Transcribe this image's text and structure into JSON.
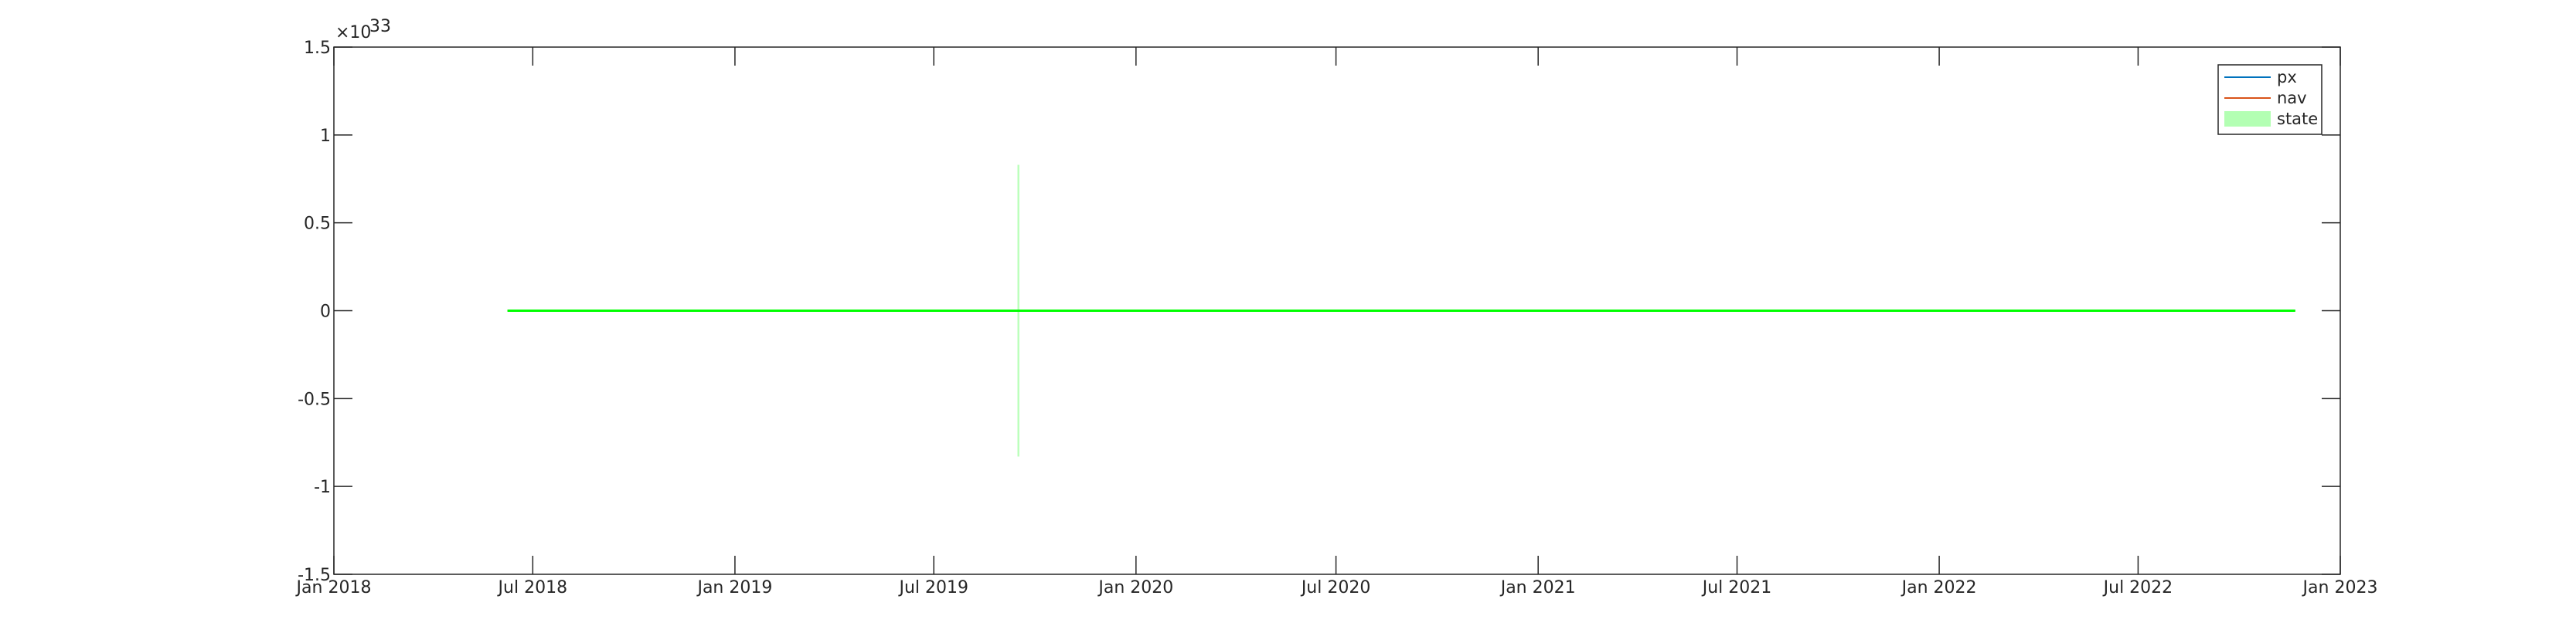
{
  "chart_data": {
    "type": "line",
    "title": "",
    "xlabel": "",
    "ylabel": "",
    "y_exponent_label": "×10",
    "y_exponent": "33",
    "xlim": [
      "2018-01-01",
      "2023-01-01"
    ],
    "ylim": [
      -1.5,
      1.5
    ],
    "x_ticks": [
      {
        "date": "2018-01-01",
        "label": "Jan 2018"
      },
      {
        "date": "2018-07-01",
        "label": "Jul 2018"
      },
      {
        "date": "2019-01-01",
        "label": "Jan 2019"
      },
      {
        "date": "2019-07-01",
        "label": "Jul 2019"
      },
      {
        "date": "2020-01-01",
        "label": "Jan 2020"
      },
      {
        "date": "2020-07-01",
        "label": "Jul 2020"
      },
      {
        "date": "2021-01-01",
        "label": "Jan 2021"
      },
      {
        "date": "2021-07-01",
        "label": "Jul 2021"
      },
      {
        "date": "2022-01-01",
        "label": "Jan 2022"
      },
      {
        "date": "2022-07-01",
        "label": "Jul 2022"
      },
      {
        "date": "2023-01-01",
        "label": "Jan 2023"
      }
    ],
    "y_ticks": [
      {
        "value": 1.5,
        "label": "1.5"
      },
      {
        "value": 1,
        "label": "1"
      },
      {
        "value": 0.5,
        "label": "0.5"
      },
      {
        "value": 0,
        "label": "0"
      },
      {
        "value": -0.5,
        "label": "-0.5"
      },
      {
        "value": -1,
        "label": "-1"
      },
      {
        "value": -1.5,
        "label": "-1.5"
      }
    ],
    "grid": false,
    "legend_position": "top-right",
    "series": [
      {
        "name": "px",
        "kind": "line",
        "color": "#0072BD",
        "x": [
          "2018-06-08",
          "2022-11-21"
        ],
        "y": [
          0,
          0
        ]
      },
      {
        "name": "nav",
        "kind": "line",
        "color": "#D95319",
        "x": [
          "2018-06-08",
          "2022-11-21"
        ],
        "y": [
          0,
          0
        ]
      },
      {
        "name": "state",
        "kind": "area",
        "color": "#00ff00",
        "legend_color": "#b3ffb3",
        "x": [
          "2018-06-08",
          "2022-11-21"
        ],
        "y": [
          0,
          0
        ],
        "spike": {
          "date": "2019-09-16",
          "ymin": -0.83,
          "ymax": 0.83
        }
      }
    ]
  }
}
